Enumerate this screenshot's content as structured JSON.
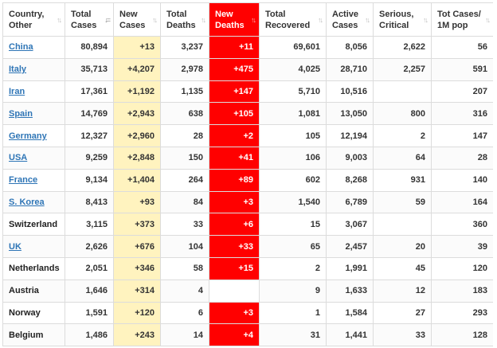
{
  "headers": [
    {
      "line1": "Country,",
      "line2": "Other",
      "sort": "↑↓"
    },
    {
      "line1": "Total",
      "line2": "Cases",
      "sort": "↓="
    },
    {
      "line1": "New",
      "line2": "Cases",
      "sort": "↑↓"
    },
    {
      "line1": "Total",
      "line2": "Deaths",
      "sort": "↑↓"
    },
    {
      "line1": "New",
      "line2": "Deaths",
      "sort": "↑↓"
    },
    {
      "line1": "Total",
      "line2": "Recovered",
      "sort": "↑↓"
    },
    {
      "line1": "Active",
      "line2": "Cases",
      "sort": "↑↓"
    },
    {
      "line1": "Serious,",
      "line2": "Critical",
      "sort": "↑↓"
    },
    {
      "line1": "Tot Cases/",
      "line2": "1M pop",
      "sort": "↑↓"
    }
  ],
  "rows": [
    {
      "country": "China",
      "link": true,
      "total_cases": "80,894",
      "new_cases": "+13",
      "total_deaths": "3,237",
      "new_deaths": "+11",
      "recovered": "69,601",
      "active": "8,056",
      "serious": "2,622",
      "per_million": "56"
    },
    {
      "country": "Italy",
      "link": true,
      "total_cases": "35,713",
      "new_cases": "+4,207",
      "total_deaths": "2,978",
      "new_deaths": "+475",
      "recovered": "4,025",
      "active": "28,710",
      "serious": "2,257",
      "per_million": "591"
    },
    {
      "country": "Iran",
      "link": true,
      "total_cases": "17,361",
      "new_cases": "+1,192",
      "total_deaths": "1,135",
      "new_deaths": "+147",
      "recovered": "5,710",
      "active": "10,516",
      "serious": "",
      "per_million": "207"
    },
    {
      "country": "Spain",
      "link": true,
      "total_cases": "14,769",
      "new_cases": "+2,943",
      "total_deaths": "638",
      "new_deaths": "+105",
      "recovered": "1,081",
      "active": "13,050",
      "serious": "800",
      "per_million": "316"
    },
    {
      "country": "Germany",
      "link": true,
      "total_cases": "12,327",
      "new_cases": "+2,960",
      "total_deaths": "28",
      "new_deaths": "+2",
      "recovered": "105",
      "active": "12,194",
      "serious": "2",
      "per_million": "147"
    },
    {
      "country": "USA",
      "link": true,
      "total_cases": "9,259",
      "new_cases": "+2,848",
      "total_deaths": "150",
      "new_deaths": "+41",
      "recovered": "106",
      "active": "9,003",
      "serious": "64",
      "per_million": "28"
    },
    {
      "country": "France",
      "link": true,
      "total_cases": "9,134",
      "new_cases": "+1,404",
      "total_deaths": "264",
      "new_deaths": "+89",
      "recovered": "602",
      "active": "8,268",
      "serious": "931",
      "per_million": "140"
    },
    {
      "country": "S. Korea",
      "link": true,
      "total_cases": "8,413",
      "new_cases": "+93",
      "total_deaths": "84",
      "new_deaths": "+3",
      "recovered": "1,540",
      "active": "6,789",
      "serious": "59",
      "per_million": "164"
    },
    {
      "country": "Switzerland",
      "link": false,
      "total_cases": "3,115",
      "new_cases": "+373",
      "total_deaths": "33",
      "new_deaths": "+6",
      "recovered": "15",
      "active": "3,067",
      "serious": "",
      "per_million": "360"
    },
    {
      "country": "UK",
      "link": true,
      "total_cases": "2,626",
      "new_cases": "+676",
      "total_deaths": "104",
      "new_deaths": "+33",
      "recovered": "65",
      "active": "2,457",
      "serious": "20",
      "per_million": "39"
    },
    {
      "country": "Netherlands",
      "link": false,
      "total_cases": "2,051",
      "new_cases": "+346",
      "total_deaths": "58",
      "new_deaths": "+15",
      "recovered": "2",
      "active": "1,991",
      "serious": "45",
      "per_million": "120"
    },
    {
      "country": "Austria",
      "link": false,
      "total_cases": "1,646",
      "new_cases": "+314",
      "total_deaths": "4",
      "new_deaths": "",
      "recovered": "9",
      "active": "1,633",
      "serious": "12",
      "per_million": "183"
    },
    {
      "country": "Norway",
      "link": false,
      "total_cases": "1,591",
      "new_cases": "+120",
      "total_deaths": "6",
      "new_deaths": "+3",
      "recovered": "1",
      "active": "1,584",
      "serious": "27",
      "per_million": "293"
    },
    {
      "country": "Belgium",
      "link": false,
      "total_cases": "1,486",
      "new_cases": "+243",
      "total_deaths": "14",
      "new_deaths": "+4",
      "recovered": "31",
      "active": "1,441",
      "serious": "33",
      "per_million": "128"
    }
  ],
  "colors": {
    "new_cases_bg": "#fff3bf",
    "new_deaths_bg": "#ff0000",
    "link": "#2e75b6"
  }
}
